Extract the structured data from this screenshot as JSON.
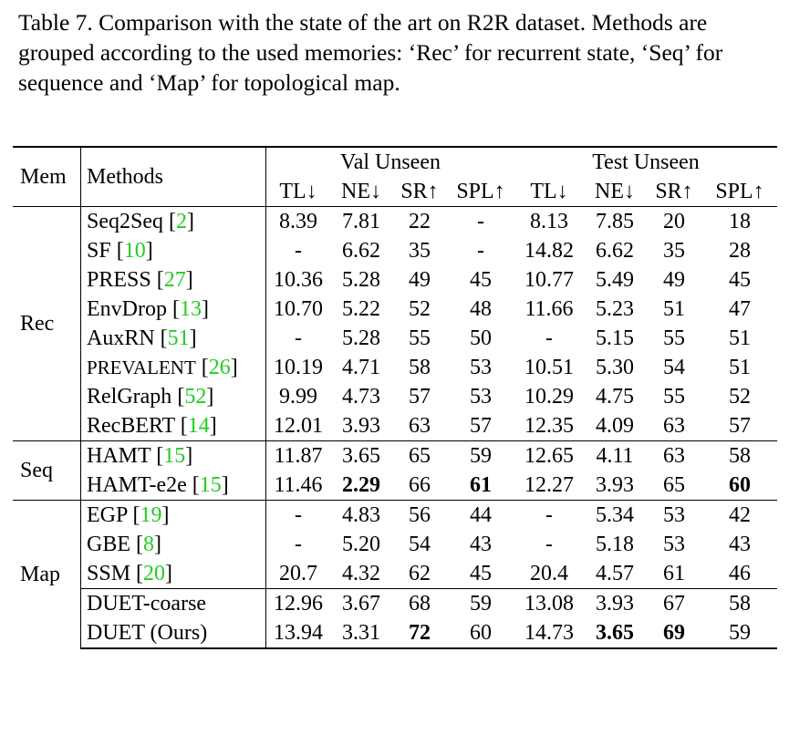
{
  "caption": "Table 7.  Comparison with the state of the art on R2R dataset. Methods are grouped according to the used memories: ‘Rec’ for recurrent state, ‘Seq’ for sequence and ‘Map’ for topological map.",
  "header": {
    "mem": "Mem",
    "methods": "Methods",
    "val_unseen": "Val Unseen",
    "test_unseen": "Test Unseen",
    "metrics": [
      "TL↓",
      "NE↓",
      "SR↑",
      "SPL↑",
      "TL↓",
      "NE↓",
      "SR↑",
      "SPL↑"
    ]
  },
  "groups": [
    {
      "mem": "Rec",
      "rows": [
        {
          "name": "Seq2Seq",
          "ref": "2",
          "cells": [
            "8.39",
            "7.81",
            "22",
            "-",
            "8.13",
            "7.85",
            "20",
            "18"
          ],
          "bold": []
        },
        {
          "name": "SF",
          "ref": "10",
          "cells": [
            "-",
            "6.62",
            "35",
            "-",
            "14.82",
            "6.62",
            "35",
            "28"
          ],
          "bold": []
        },
        {
          "name": "PRESS",
          "ref": "27",
          "cells": [
            "10.36",
            "5.28",
            "49",
            "45",
            "10.77",
            "5.49",
            "49",
            "45"
          ],
          "bold": []
        },
        {
          "name": "EnvDrop",
          "ref": "13",
          "cells": [
            "10.70",
            "5.22",
            "52",
            "48",
            "11.66",
            "5.23",
            "51",
            "47"
          ],
          "bold": []
        },
        {
          "name": "AuxRN",
          "ref": "51",
          "cells": [
            "-",
            "5.28",
            "55",
            "50",
            "-",
            "5.15",
            "55",
            "51"
          ],
          "bold": []
        },
        {
          "name": "PREVALENT",
          "ref": "26",
          "cells": [
            "10.19",
            "4.71",
            "58",
            "53",
            "10.51",
            "5.30",
            "54",
            "51"
          ],
          "bold": []
        },
        {
          "name": "RelGraph",
          "ref": "52",
          "cells": [
            "9.99",
            "4.73",
            "57",
            "53",
            "10.29",
            "4.75",
            "55",
            "52"
          ],
          "bold": []
        },
        {
          "name": "RecBERT",
          "ref": "14",
          "cells": [
            "12.01",
            "3.93",
            "63",
            "57",
            "12.35",
            "4.09",
            "63",
            "57"
          ],
          "bold": []
        }
      ]
    },
    {
      "mem": "Seq",
      "rows": [
        {
          "name": "HAMT",
          "ref": "15",
          "cells": [
            "11.87",
            "3.65",
            "65",
            "59",
            "12.65",
            "4.11",
            "63",
            "58"
          ],
          "bold": []
        },
        {
          "name": "HAMT-e2e",
          "ref": "15",
          "cells": [
            "11.46",
            "2.29",
            "66",
            "61",
            "12.27",
            "3.93",
            "65",
            "60"
          ],
          "bold": [
            1,
            3,
            7
          ]
        }
      ]
    },
    {
      "mem": "Map",
      "rows": [
        {
          "name": "EGP",
          "ref": "19",
          "cells": [
            "-",
            "4.83",
            "56",
            "44",
            "-",
            "5.34",
            "53",
            "42"
          ],
          "bold": []
        },
        {
          "name": "GBE",
          "ref": "8",
          "cells": [
            "-",
            "5.20",
            "54",
            "43",
            "-",
            "5.18",
            "53",
            "43"
          ],
          "bold": []
        },
        {
          "name": "SSM",
          "ref": "20",
          "cells": [
            "20.7",
            "4.32",
            "62",
            "45",
            "20.4",
            "4.57",
            "61",
            "46"
          ],
          "bold": []
        },
        {
          "name": "DUET-coarse",
          "ref": null,
          "cells": [
            "12.96",
            "3.67",
            "68",
            "59",
            "13.08",
            "3.93",
            "67",
            "58"
          ],
          "bold": [],
          "sep": true
        },
        {
          "name": "DUET (Ours)",
          "ref": null,
          "cells": [
            "13.94",
            "3.31",
            "72",
            "60",
            "14.73",
            "3.65",
            "69",
            "59"
          ],
          "bold": [
            2,
            5,
            6
          ]
        }
      ]
    }
  ]
}
